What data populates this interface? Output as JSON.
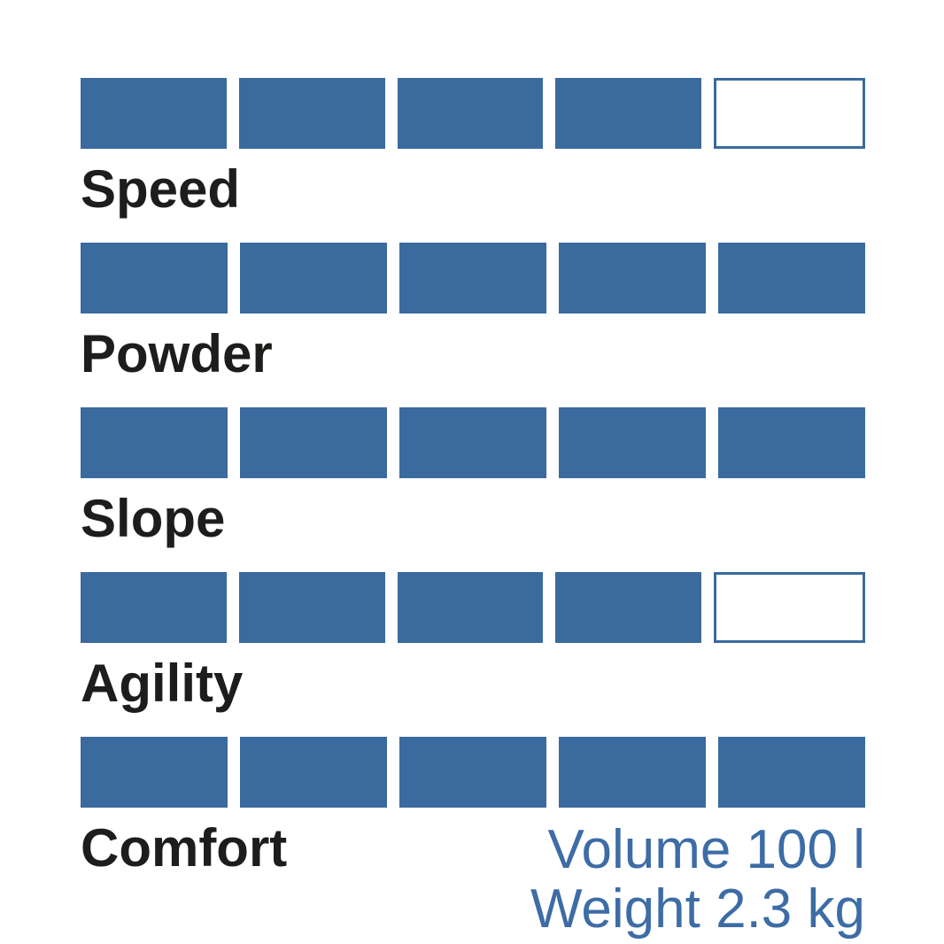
{
  "chart_data": {
    "type": "bar",
    "subtype": "rating-blocks",
    "title": "",
    "categories": [
      "Speed",
      "Powder",
      "Slope",
      "Agility",
      "Comfort"
    ],
    "values": [
      4,
      5,
      5,
      4,
      5
    ],
    "max_rating": 5,
    "xlabel": "",
    "ylabel": "",
    "grid": false,
    "legend": false,
    "annotations": [
      "Volume 100 l",
      "Weight 2.3 kg"
    ]
  },
  "specs": {
    "volume": "Volume 100 l",
    "weight": "Weight 2.3 kg"
  },
  "colors": {
    "block_fill": "#3a6a9e",
    "block_border": "#3a6a9e",
    "label_color": "#1d1d1b",
    "spec_color": "#3d6ca6",
    "bg": "#ffffff"
  }
}
